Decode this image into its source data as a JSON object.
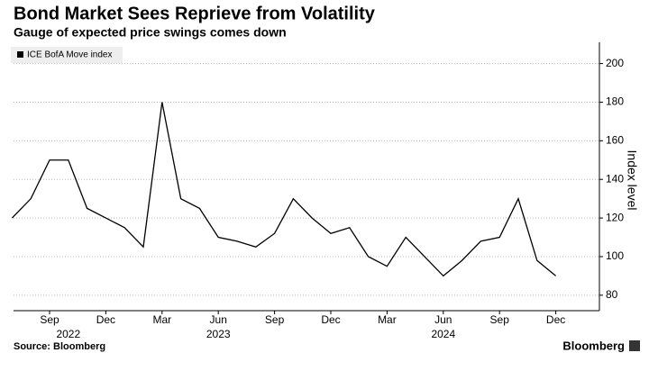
{
  "chart_data": {
    "type": "line",
    "title": "Bond Market Sees Reprieve from Volatility",
    "subtitle": "Gauge of expected price swings comes down",
    "source": "Source: Bloomberg",
    "brand": "Bloomberg",
    "y_label": "Index level",
    "x": [
      "2022-07",
      "2022-08",
      "2022-09",
      "2022-10",
      "2022-11",
      "2022-12",
      "2023-01",
      "2023-02",
      "2023-03",
      "2023-04",
      "2023-05",
      "2023-06",
      "2023-07",
      "2023-08",
      "2023-09",
      "2023-10",
      "2023-11",
      "2023-12",
      "2024-01",
      "2024-02",
      "2024-03",
      "2024-04",
      "2024-05",
      "2024-06",
      "2024-07",
      "2024-08",
      "2024-09",
      "2024-10",
      "2024-11",
      "2024-12"
    ],
    "series": [
      {
        "name": "ICE BofA Move index",
        "color": "#000000",
        "values": [
          120,
          130,
          150,
          150,
          125,
          120,
          115,
          105,
          180,
          130,
          125,
          110,
          108,
          105,
          112,
          130,
          120,
          112,
          115,
          100,
          95,
          110,
          100,
          90,
          98,
          108,
          110,
          130,
          98,
          90
        ]
      }
    ],
    "xticks": [
      {
        "value": "2022-09",
        "label": "Sep"
      },
      {
        "value": "2022-12",
        "label": "Dec"
      },
      {
        "value": "2023-03",
        "label": "Mar"
      },
      {
        "value": "2023-06",
        "label": "Jun"
      },
      {
        "value": "2023-09",
        "label": "Sep"
      },
      {
        "value": "2023-12",
        "label": "Dec"
      },
      {
        "value": "2024-03",
        "label": "Mar"
      },
      {
        "value": "2024-06",
        "label": "Jun"
      },
      {
        "value": "2024-09",
        "label": "Sep"
      },
      {
        "value": "2024-12",
        "label": "Dec"
      }
    ],
    "xtick_years": [
      {
        "value": "2022-10",
        "label": "2022"
      },
      {
        "value": "2023-06",
        "label": "2023"
      },
      {
        "value": "2024-06",
        "label": "2024"
      }
    ],
    "ylim": [
      72,
      211
    ],
    "yticks": [
      80,
      100,
      120,
      140,
      160,
      180,
      200
    ],
    "grid": true,
    "legend": "top-left"
  }
}
